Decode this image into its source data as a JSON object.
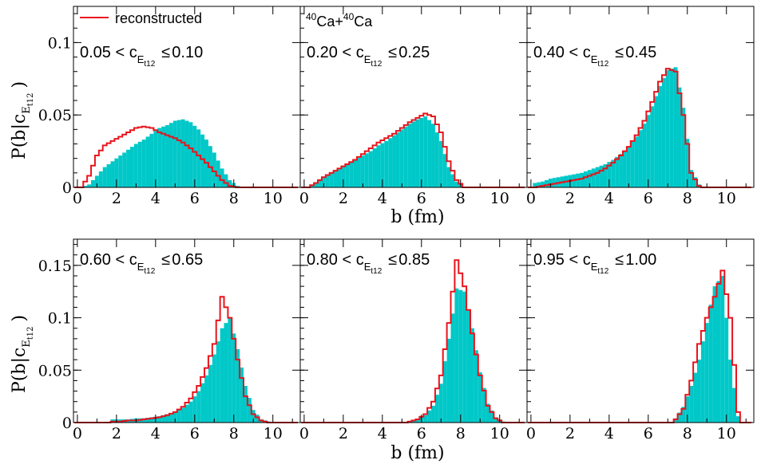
{
  "chart_data": {
    "type": "bar",
    "xlabel": "b (fm)",
    "ylabel": {
      "prefix": "P(b|c",
      "sub1": "E",
      "sub2": "t12",
      "suffix": ")"
    },
    "legend": {
      "label": "reconstructed",
      "color": "#e8141c",
      "placement": "top-left"
    },
    "annotation": {
      "base": "Ca+",
      "base2": "Ca",
      "sup": "40"
    },
    "colors": {
      "histogram_fill": "#00c8c8",
      "reconstructed_line": "#e8141c"
    },
    "bin_width": 0.2,
    "xlim": [
      -0.2,
      11.4
    ],
    "rows": [
      {
        "ylim": [
          0,
          0.125
        ],
        "ticks": [
          "0",
          "0.05",
          "0.1"
        ],
        "tick_values": [
          0,
          0.05,
          0.1
        ]
      },
      {
        "ylim": [
          0,
          0.175
        ],
        "ticks": [
          "0",
          "0.05",
          "0.1",
          "0.15"
        ],
        "tick_values": [
          0,
          0.05,
          0.1,
          0.15
        ]
      }
    ],
    "xticks": [
      "0",
      "2",
      "4",
      "6",
      "8",
      "10"
    ],
    "xtick_values": [
      0,
      2,
      4,
      6,
      8,
      10
    ],
    "panels": [
      {
        "range": {
          "lo": "0.05 < c",
          "hi": "0.10"
        },
        "sub1": "E",
        "sub2": "t12",
        "leq": "≤",
        "hist": {
          "x": [
            0.2,
            0.6,
            1,
            1.4,
            1.8,
            2.2,
            2.6,
            3,
            3.4,
            3.8,
            4.2,
            4.6,
            5,
            5.4,
            5.8,
            6.2,
            6.6,
            7,
            7.4,
            7.8,
            8.2
          ],
          "y": [
            0,
            0.002,
            0.008,
            0.014,
            0.018,
            0.022,
            0.026,
            0.03,
            0.033,
            0.037,
            0.041,
            0.043,
            0.046,
            0.047,
            0.045,
            0.04,
            0.033,
            0.024,
            0.013,
            0.005,
            0.001
          ]
        },
        "recon": {
          "x": [
            0.2,
            0.6,
            1,
            1.4,
            1.8,
            2.2,
            2.6,
            3,
            3.4,
            3.8,
            4.2,
            4.6,
            5,
            5.4,
            5.8,
            6.2,
            6.6,
            7,
            7.4,
            7.8,
            8.2
          ],
          "y": [
            0,
            0.008,
            0.022,
            0.029,
            0.032,
            0.035,
            0.038,
            0.041,
            0.042,
            0.041,
            0.038,
            0.036,
            0.034,
            0.031,
            0.027,
            0.022,
            0.017,
            0.011,
            0.005,
            0.001,
            0
          ]
        }
      },
      {
        "range": {
          "lo": "0.20 < c",
          "hi": "0.25"
        },
        "sub1": "E",
        "sub2": "t12",
        "leq": "≤",
        "hist": {
          "x": [
            0.2,
            0.6,
            1,
            1.4,
            1.8,
            2.2,
            2.6,
            3,
            3.4,
            3.8,
            4.2,
            4.6,
            5,
            5.4,
            5.8,
            6.2,
            6.6,
            7,
            7.4,
            7.8,
            8.2
          ],
          "y": [
            0,
            0.003,
            0.007,
            0.01,
            0.013,
            0.016,
            0.019,
            0.022,
            0.025,
            0.029,
            0.032,
            0.036,
            0.04,
            0.044,
            0.047,
            0.049,
            0.044,
            0.032,
            0.014,
            0.004,
            0
          ]
        },
        "recon": {
          "x": [
            0.2,
            0.6,
            1,
            1.4,
            1.8,
            2.2,
            2.6,
            3,
            3.4,
            3.8,
            4.2,
            4.6,
            5,
            5.4,
            5.8,
            6.2,
            6.6,
            7,
            7.4,
            7.8,
            8.2
          ],
          "y": [
            0,
            0.003,
            0.007,
            0.01,
            0.013,
            0.016,
            0.019,
            0.023,
            0.027,
            0.031,
            0.034,
            0.037,
            0.041,
            0.045,
            0.048,
            0.051,
            0.049,
            0.038,
            0.018,
            0.005,
            0
          ]
        }
      },
      {
        "range": {
          "lo": "0.40 < c",
          "hi": "0.45"
        },
        "sub1": "E",
        "sub2": "t12",
        "leq": "≤",
        "hist": {
          "x": [
            0.2,
            0.6,
            1,
            1.4,
            1.8,
            2.2,
            2.6,
            3,
            3.4,
            3.8,
            4.2,
            4.6,
            5,
            5.4,
            5.8,
            6.2,
            6.6,
            7,
            7.4,
            7.8,
            8.2,
            8.6
          ],
          "y": [
            0.003,
            0.004,
            0.006,
            0.007,
            0.008,
            0.009,
            0.01,
            0.012,
            0.014,
            0.016,
            0.019,
            0.023,
            0.028,
            0.035,
            0.044,
            0.056,
            0.07,
            0.081,
            0.083,
            0.055,
            0.012,
            0.002
          ]
        },
        "recon": {
          "x": [
            0.2,
            0.6,
            1,
            1.4,
            1.8,
            2.2,
            2.6,
            3,
            3.4,
            3.8,
            4.2,
            4.6,
            5,
            5.4,
            5.8,
            6.2,
            6.6,
            7,
            7.4,
            7.8,
            8.2,
            8.6
          ],
          "y": [
            0,
            0.001,
            0.002,
            0.003,
            0.004,
            0.005,
            0.006,
            0.008,
            0.01,
            0.013,
            0.017,
            0.022,
            0.028,
            0.036,
            0.046,
            0.059,
            0.073,
            0.082,
            0.08,
            0.05,
            0.01,
            0.001
          ]
        }
      },
      {
        "range": {
          "lo": "0.60 < c",
          "hi": "0.65"
        },
        "sub1": "E",
        "sub2": "t12",
        "leq": "≤",
        "hist": {
          "x": [
            1.8,
            2.2,
            2.6,
            3,
            3.4,
            3.8,
            4.2,
            4.6,
            5,
            5.4,
            5.8,
            6.2,
            6.6,
            7,
            7.4,
            7.8,
            8.2,
            8.6,
            9,
            9.4,
            9.8
          ],
          "y": [
            0.003,
            0.003,
            0.003,
            0.004,
            0.004,
            0.005,
            0.006,
            0.008,
            0.01,
            0.014,
            0.02,
            0.03,
            0.045,
            0.065,
            0.09,
            0.1,
            0.07,
            0.035,
            0.012,
            0.003,
            0.001
          ]
        },
        "recon": {
          "x": [
            1.8,
            2.2,
            2.6,
            3,
            3.4,
            3.8,
            4.2,
            4.6,
            5,
            5.4,
            5.8,
            6.2,
            6.6,
            7,
            7.4,
            7.8,
            8.2,
            8.6,
            9,
            9.4,
            9.8
          ],
          "y": [
            0.001,
            0.001,
            0.002,
            0.002,
            0.003,
            0.004,
            0.005,
            0.007,
            0.01,
            0.015,
            0.023,
            0.035,
            0.052,
            0.075,
            0.12,
            0.1,
            0.06,
            0.025,
            0.008,
            0.002,
            0
          ]
        }
      },
      {
        "range": {
          "lo": "0.80 < c",
          "hi": "0.85"
        },
        "sub1": "E",
        "sub2": "t12",
        "leq": "≤",
        "hist": {
          "x": [
            5.4,
            5.8,
            6.2,
            6.6,
            7,
            7.4,
            7.8,
            8.2,
            8.6,
            9,
            9.4,
            9.8,
            10.2
          ],
          "y": [
            0.001,
            0.003,
            0.007,
            0.016,
            0.037,
            0.08,
            0.128,
            0.125,
            0.09,
            0.048,
            0.018,
            0.005,
            0.001
          ]
        },
        "recon": {
          "x": [
            5.4,
            5.8,
            6.2,
            6.6,
            7,
            7.4,
            7.8,
            8.2,
            8.6,
            9,
            9.4,
            9.8,
            10.2
          ],
          "y": [
            0.001,
            0.003,
            0.008,
            0.02,
            0.045,
            0.095,
            0.155,
            0.13,
            0.085,
            0.045,
            0.016,
            0.004,
            0
          ]
        }
      },
      {
        "range": {
          "lo": "0.95 < c",
          "hi": "1.00"
        },
        "sub1": "E",
        "sub2": "t12",
        "leq": "≤",
        "hist": {
          "x": [
            7.4,
            7.8,
            8.2,
            8.6,
            9,
            9.4,
            9.8,
            10.2,
            10.6
          ],
          "y": [
            0.004,
            0.015,
            0.035,
            0.06,
            0.095,
            0.13,
            0.14,
            0.06,
            0.006
          ]
        },
        "recon": {
          "x": [
            7.4,
            7.8,
            8.2,
            8.6,
            9,
            9.4,
            9.8,
            10.2,
            10.6
          ],
          "y": [
            0.003,
            0.013,
            0.04,
            0.075,
            0.1,
            0.12,
            0.145,
            0.1,
            0.01
          ]
        }
      }
    ]
  }
}
